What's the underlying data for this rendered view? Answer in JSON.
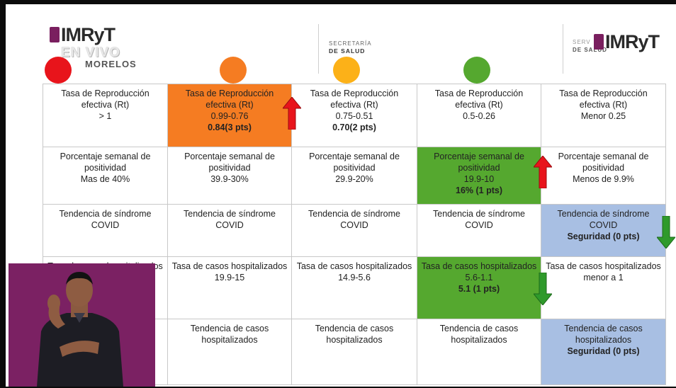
{
  "branding": {
    "left_logo": "IMRyT",
    "live_label": "EN VIVO",
    "state": "MORELOS",
    "ss_line1": "SECRETARÍA",
    "ss_line2": "DE SALUD",
    "right_ss_line1": "SERV",
    "right_ss_line2": "DE SALUD",
    "right_logo": "IMRyT"
  },
  "colors": {
    "red": "#e8141b",
    "orange": "#f57c22",
    "yellow": "#fcb118",
    "green": "#55a82f",
    "blue": "#a8bfe3",
    "interpreter_bg": "#7b2163"
  },
  "semaforo": [
    "red",
    "orange",
    "yellow",
    "green"
  ],
  "rows": [
    {
      "cells": [
        {
          "lines": [
            "Tasa de Reproducción",
            "efectiva (Rt)",
            "> 1"
          ],
          "bold": ""
        },
        {
          "lines": [
            "Tasa de Reproducción",
            "efectiva (Rt)",
            "0.99-0.76"
          ],
          "bold": "0.84(3 pts)",
          "highlight": "orange",
          "arrow": "up-red"
        },
        {
          "lines": [
            "Tasa de Reproducción",
            "efectiva (Rt)",
            "0.75-0.51"
          ],
          "bold": "0.70(2 pts)"
        },
        {
          "lines": [
            "Tasa de Reproducción",
            "efectiva (Rt)",
            "0.5-0.26"
          ],
          "bold": ""
        },
        {
          "lines": [
            "Tasa de Reproducción",
            "efectiva (Rt)",
            "Menor 0.25"
          ],
          "bold": ""
        }
      ]
    },
    {
      "cells": [
        {
          "lines": [
            "Porcentaje semanal de",
            "positividad",
            "Mas de 40%"
          ],
          "bold": ""
        },
        {
          "lines": [
            "Porcentaje semanal de",
            "positividad",
            "39.9-30%"
          ],
          "bold": ""
        },
        {
          "lines": [
            "Porcentaje semanal de",
            "positividad",
            "29.9-20%"
          ],
          "bold": ""
        },
        {
          "lines": [
            "Porcentaje semanal de",
            "positividad",
            "19.9-10"
          ],
          "bold": "16% (1 pts)",
          "highlight": "green",
          "arrow": "up-red"
        },
        {
          "lines": [
            "Porcentaje semanal de",
            "positividad",
            "Menos de 9.9%"
          ],
          "bold": ""
        }
      ]
    },
    {
      "cells": [
        {
          "lines": [
            "Tendencia de síndrome",
            "COVID"
          ],
          "bold": ""
        },
        {
          "lines": [
            "Tendencia de síndrome",
            "COVID"
          ],
          "bold": ""
        },
        {
          "lines": [
            "Tendencia de síndrome",
            "COVID"
          ],
          "bold": ""
        },
        {
          "lines": [
            "Tendencia de síndrome",
            "COVID"
          ],
          "bold": ""
        },
        {
          "lines": [
            "Tendencia de síndrome",
            "COVID"
          ],
          "bold": "Seguridad (0 pts)",
          "highlight": "blue",
          "arrow": "down-green"
        }
      ]
    },
    {
      "cells": [
        {
          "lines": [
            "Tasa de casos hospitalizados"
          ],
          "bold": ""
        },
        {
          "lines": [
            "Tasa de casos hospitalizados",
            "19.9-15"
          ],
          "bold": ""
        },
        {
          "lines": [
            "Tasa de casos hospitalizados",
            "14.9-5.6"
          ],
          "bold": ""
        },
        {
          "lines": [
            "Tasa de casos hospitalizados",
            "5.6-1.1"
          ],
          "bold": "5.1 (1 pts)",
          "highlight": "green",
          "arrow": "down-green"
        },
        {
          "lines": [
            "Tasa de casos hospitalizados",
            "menor  a 1"
          ],
          "bold": ""
        }
      ]
    },
    {
      "cells": [
        {
          "lines": [
            ""
          ],
          "bold": ""
        },
        {
          "lines": [
            "Tendencia de casos",
            "hospitalizados"
          ],
          "bold": ""
        },
        {
          "lines": [
            "Tendencia de casos",
            "hospitalizados"
          ],
          "bold": ""
        },
        {
          "lines": [
            "Tendencia de casos",
            "hospitalizados"
          ],
          "bold": ""
        },
        {
          "lines": [
            "Tendencia de casos",
            "hospitalizados"
          ],
          "bold": "Seguridad (0 pts)",
          "highlight": "blue"
        }
      ]
    }
  ]
}
